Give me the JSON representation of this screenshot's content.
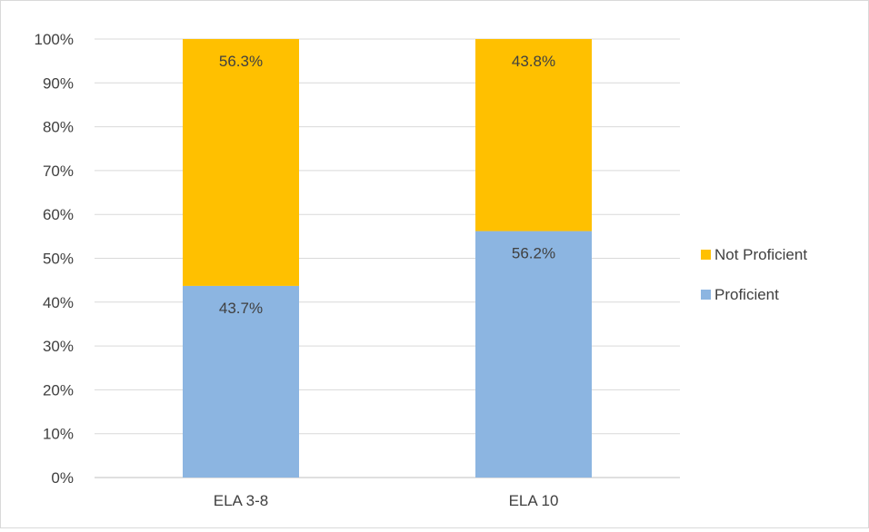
{
  "chart_data": {
    "type": "bar",
    "stacked": true,
    "categories": [
      "ELA 3-8",
      "ELA 10"
    ],
    "series": [
      {
        "name": "Proficient",
        "values": [
          43.7,
          56.2
        ],
        "labels": [
          "43.7%",
          "56.2%"
        ],
        "color": "#8cb5e1"
      },
      {
        "name": "Not Proficient",
        "values": [
          56.3,
          43.8
        ],
        "labels": [
          "56.3%",
          "43.8%"
        ],
        "color": "#ffc000"
      }
    ],
    "ylim": [
      0,
      100
    ],
    "yticks": [
      "0%",
      "10%",
      "20%",
      "30%",
      "40%",
      "50%",
      "60%",
      "70%",
      "80%",
      "90%",
      "100%"
    ],
    "grid": true,
    "legend_position": "right",
    "legend_order": [
      "Not Proficient",
      "Proficient"
    ]
  }
}
